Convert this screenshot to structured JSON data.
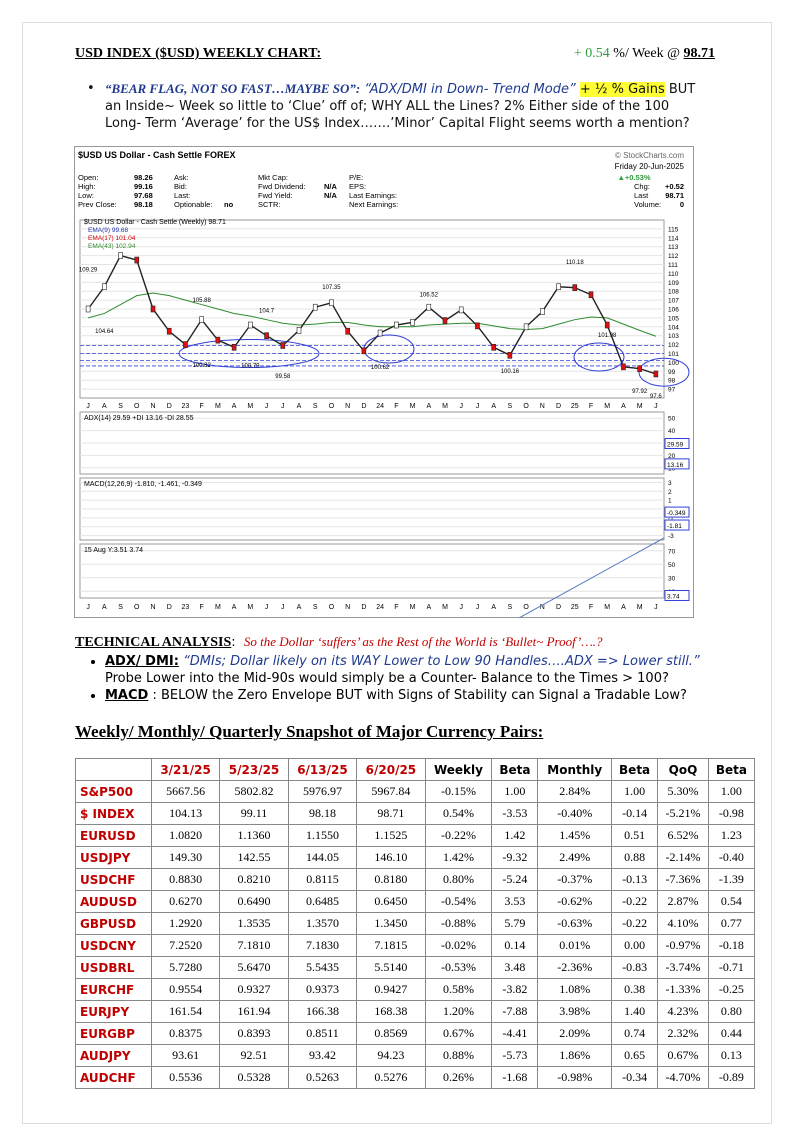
{
  "header": {
    "title": "USD INDEX ($USD) WEEKLY CHART:",
    "change": "+ 0.54",
    "unit": "%/ Week @",
    "price": "98.71"
  },
  "bullet": {
    "quote": "“BEAR FLAG, NOT SO FAST…MAYBE SO”:",
    "mode": "“ADX/DMI in Down- Trend Mode”",
    "gains": "+ ½ % Gains",
    "text": "BUT an Inside~ Week so little to ‘Clue’ off of; WHY ALL the Lines? 2% Either side of the 100 Long- Term ‘Average’ for the US$ Index…….’Minor’ Capital Flight seems worth a mention?"
  },
  "chart_data": {
    "type": "line",
    "title": "$USD US Dollar - Cash Settle FOREX",
    "source": "© StockCharts.com",
    "date": "Friday 20-Jun-2025",
    "info_left": [
      [
        "Open:",
        "98.26"
      ],
      [
        "High:",
        "99.16"
      ],
      [
        "Low:",
        "97.68"
      ],
      [
        "Prev Close:",
        "98.18"
      ]
    ],
    "info_mid": [
      [
        "Ask:",
        ""
      ],
      [
        "Bid:",
        ""
      ],
      [
        "Last:",
        ""
      ],
      [
        "Optionable:",
        "no"
      ]
    ],
    "info_mid2": [
      [
        "Mkt Cap:",
        ""
      ],
      [
        "Fwd Dividend:",
        "N/A"
      ],
      [
        "Fwd Yield:",
        "N/A"
      ],
      [
        "SCTR:",
        ""
      ]
    ],
    "info_mid3": [
      "P/E:",
      "EPS:",
      "Last Earnings:",
      "Next Earnings:"
    ],
    "info_right": [
      [
        "▲+0.53%",
        ""
      ],
      [
        "Chg:",
        "+0.52"
      ],
      [
        "Last",
        "98.71"
      ],
      [
        "Volume:",
        "0"
      ]
    ],
    "legend_extra": [
      "EMA(9) 99.68",
      "EMA(17) 101.04"
    ],
    "categories": [
      "J",
      "A",
      "S",
      "O",
      "N",
      "D",
      "23",
      "F",
      "M",
      "A",
      "M",
      "J",
      "J",
      "A",
      "S",
      "O",
      "N",
      "D",
      "24",
      "F",
      "M",
      "A",
      "M",
      "J",
      "J",
      "A",
      "S",
      "O",
      "N",
      "D",
      "25",
      "F",
      "M",
      "A",
      "M",
      "J"
    ],
    "series": [
      {
        "name": "$USD US Dollar - Cash Settle (Weekly) 98.71",
        "color": "#222222",
        "values": [
          106,
          108.5,
          112,
          111.5,
          106,
          103.5,
          102,
          104.8,
          102.5,
          101.7,
          104.2,
          103,
          101.9,
          103.6,
          106.2,
          106.7,
          103.5,
          101.3,
          103.3,
          104.2,
          104.5,
          106.2,
          104.7,
          105.9,
          104.1,
          101.7,
          100.8,
          104,
          105.7,
          108.5,
          108.4,
          107.6,
          104.2,
          99.5,
          99.3,
          98.7
        ]
      },
      {
        "name": "EMA(43) 102.94",
        "color": "#2e8b2e",
        "values": [
          105,
          105.5,
          106.5,
          107.5,
          107.8,
          107.5,
          107,
          106.5,
          106,
          105.5,
          105.2,
          104.8,
          104.4,
          104.2,
          104.3,
          104.5,
          104.5,
          104.2,
          104,
          104,
          104,
          104.2,
          104.3,
          104.4,
          104.4,
          104.1,
          103.8,
          103.7,
          103.8,
          104.3,
          104.8,
          105.1,
          105,
          104.3,
          103.6,
          102.94
        ]
      }
    ],
    "annotations": [
      109.29,
      104.64,
      105.88,
      100.82,
      100.79,
      104.7,
      99.58,
      107.35,
      100.62,
      106.52,
      100.16,
      110.18,
      101.98,
      97.92,
      97.6
    ],
    "ylim": [
      96,
      116
    ],
    "yticks": [
      97,
      98,
      99,
      100,
      101,
      102,
      103,
      104,
      105,
      106,
      107,
      108,
      109,
      110,
      111,
      112,
      113,
      114,
      115
    ],
    "adx": {
      "label": "ADX(14) 29.59 +DI 13.16 -DI 28.55",
      "yticks": [
        10,
        20,
        30,
        40,
        50
      ],
      "ylim": [
        5,
        55
      ],
      "last": [
        29.59,
        13.16
      ]
    },
    "macd": {
      "label": "MACD(12,26,9) -1.810, -1.461, -0.349",
      "yticks": [
        3,
        2,
        1,
        0,
        -1,
        -2,
        -3
      ],
      "ylim": [
        -3.5,
        3.5
      ],
      "last": [
        -0.349,
        -1.81
      ]
    },
    "third": {
      "label": "15 Aug Y:3.51 3.74",
      "yticks": [
        70,
        50,
        30,
        10
      ],
      "ylim": [
        0,
        80
      ],
      "last": [
        3.74
      ]
    }
  },
  "analysis": {
    "heading": "TECHNICAL ANALYSIS",
    "colon": ":",
    "quote": "So the Dollar ‘suffers’ as the Rest of the World is ‘Bullet~ Proof’….?",
    "items": [
      {
        "lead": "ADX/ DMI:",
        "italic": "“DMIs; Dollar likely on its WAY Lower to Low 90 Handles….ADX => Lower still.”",
        "text": "Probe Lower into the Mid-90s would simply be a Counter- Balance to the Times > 100?"
      },
      {
        "lead": "MACD",
        "italic": "",
        "text": ": BELOW the Zero Envelope BUT with Signs of Stability can Signal a Tradable Low?"
      }
    ]
  },
  "table": {
    "title": "Weekly/ Monthly/ Quarterly Snapshot of Major Currency Pairs:",
    "header": [
      "",
      "3/21/25",
      "5/23/25",
      "6/13/25",
      "6/20/25",
      "Weekly",
      "Beta",
      "Monthly",
      "Beta",
      "QoQ",
      "Beta"
    ],
    "rows": [
      [
        "S&P500",
        "5667.56",
        "5802.82",
        "5976.97",
        "5967.84",
        "-0.15%",
        "1.00",
        "2.84%",
        "1.00",
        "5.30%",
        "1.00"
      ],
      [
        "$ INDEX",
        "104.13",
        "99.11",
        "98.18",
        "98.71",
        "0.54%",
        "-3.53",
        "-0.40%",
        "-0.14",
        "-5.21%",
        "-0.98"
      ],
      [
        "EURUSD",
        "1.0820",
        "1.1360",
        "1.1550",
        "1.1525",
        "-0.22%",
        "1.42",
        "1.45%",
        "0.51",
        "6.52%",
        "1.23"
      ],
      [
        "USDJPY",
        "149.30",
        "142.55",
        "144.05",
        "146.10",
        "1.42%",
        "-9.32",
        "2.49%",
        "0.88",
        "-2.14%",
        "-0.40"
      ],
      [
        "USDCHF",
        "0.8830",
        "0.8210",
        "0.8115",
        "0.8180",
        "0.80%",
        "-5.24",
        "-0.37%",
        "-0.13",
        "-7.36%",
        "-1.39"
      ],
      [
        "AUDUSD",
        "0.6270",
        "0.6490",
        "0.6485",
        "0.6450",
        "-0.54%",
        "3.53",
        "-0.62%",
        "-0.22",
        "2.87%",
        "0.54"
      ],
      [
        "GBPUSD",
        "1.2920",
        "1.3535",
        "1.3570",
        "1.3450",
        "-0.88%",
        "5.79",
        "-0.63%",
        "-0.22",
        "4.10%",
        "0.77"
      ],
      [
        "USDCNY",
        "7.2520",
        "7.1810",
        "7.1830",
        "7.1815",
        "-0.02%",
        "0.14",
        "0.01%",
        "0.00",
        "-0.97%",
        "-0.18"
      ],
      [
        "USDBRL",
        "5.7280",
        "5.6470",
        "5.5435",
        "5.5140",
        "-0.53%",
        "3.48",
        "-2.36%",
        "-0.83",
        "-3.74%",
        "-0.71"
      ],
      [
        "EURCHF",
        "0.9554",
        "0.9327",
        "0.9373",
        "0.9427",
        "0.58%",
        "-3.82",
        "1.08%",
        "0.38",
        "-1.33%",
        "-0.25"
      ],
      [
        "EURJPY",
        "161.54",
        "161.94",
        "166.38",
        "168.38",
        "1.20%",
        "-7.88",
        "3.98%",
        "1.40",
        "4.23%",
        "0.80"
      ],
      [
        "EURGBP",
        "0.8375",
        "0.8393",
        "0.8511",
        "0.8569",
        "0.67%",
        "-4.41",
        "2.09%",
        "0.74",
        "2.32%",
        "0.44"
      ],
      [
        "AUDJPY",
        "93.61",
        "92.51",
        "93.42",
        "94.23",
        "0.88%",
        "-5.73",
        "1.86%",
        "0.65",
        "0.67%",
        "0.13"
      ],
      [
        "AUDCHF",
        "0.5536",
        "0.5328",
        "0.5263",
        "0.5276",
        "0.26%",
        "-1.68",
        "-0.98%",
        "-0.34",
        "-4.70%",
        "-0.89"
      ]
    ]
  }
}
